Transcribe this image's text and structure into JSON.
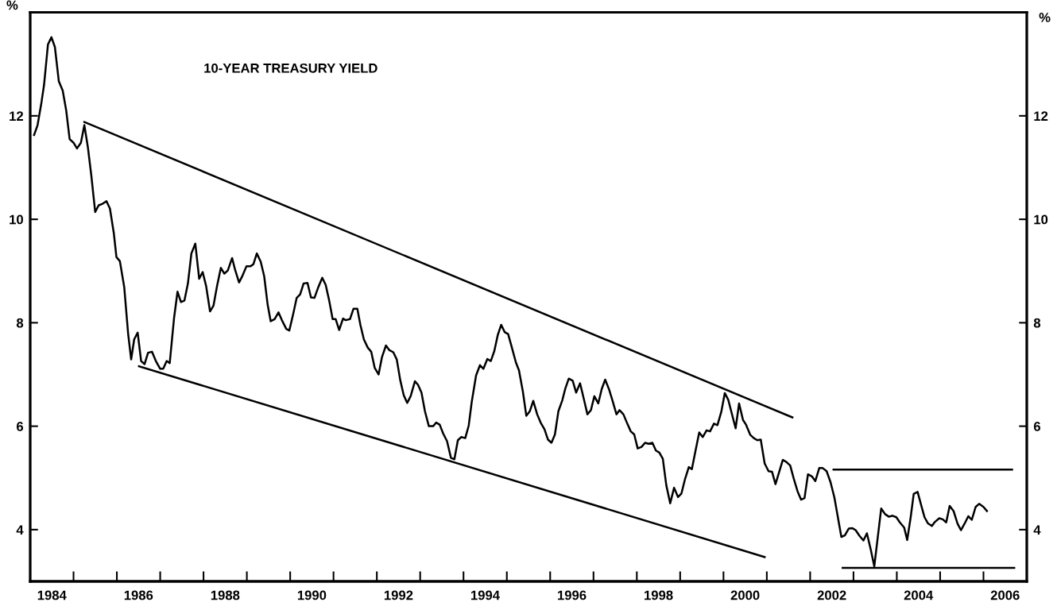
{
  "chart_data": {
    "type": "line",
    "title": "10-YEAR TREASURY YIELD",
    "ylabel": "%",
    "y2label": "%",
    "xlim": [
      1984,
      2007
    ],
    "ylim": [
      3,
      14
    ],
    "yticks": [
      4,
      6,
      8,
      10,
      12
    ],
    "y2lim": [
      3,
      14
    ],
    "y2ticks": [
      4,
      6,
      8,
      10,
      12
    ],
    "xticks": [
      {
        "value": 1984.5,
        "label": "1984"
      },
      {
        "value": 1986.5,
        "label": "1986"
      },
      {
        "value": 1988.5,
        "label": "1988"
      },
      {
        "value": 1990.5,
        "label": "1990"
      },
      {
        "value": 1992.5,
        "label": "1992"
      },
      {
        "value": 1994.5,
        "label": "1994"
      },
      {
        "value": 1996.5,
        "label": "1996"
      },
      {
        "value": 1998.5,
        "label": "1998"
      },
      {
        "value": 2000.5,
        "label": "2000"
      },
      {
        "value": 2002.5,
        "label": "2002"
      },
      {
        "value": 2004.5,
        "label": "2004"
      },
      {
        "value": 2006.5,
        "label": "2006"
      },
      {
        "value": 1985,
        "label": null
      },
      {
        "value": 1986,
        "label": null
      },
      {
        "value": 1987,
        "label": null
      },
      {
        "value": 1988,
        "label": null
      },
      {
        "value": 1989,
        "label": null
      },
      {
        "value": 1990,
        "label": null
      },
      {
        "value": 1991,
        "label": null
      },
      {
        "value": 1992,
        "label": null
      },
      {
        "value": 1993,
        "label": null
      },
      {
        "value": 1994,
        "label": null
      },
      {
        "value": 1995,
        "label": null
      },
      {
        "value": 1996,
        "label": null
      },
      {
        "value": 1997,
        "label": null
      },
      {
        "value": 1998,
        "label": null
      },
      {
        "value": 1999,
        "label": null
      },
      {
        "value": 2000,
        "label": null
      },
      {
        "value": 2001,
        "label": null
      },
      {
        "value": 2002,
        "label": null
      },
      {
        "value": 2003,
        "label": null
      },
      {
        "value": 2004,
        "label": null
      },
      {
        "value": 2005,
        "label": null
      },
      {
        "value": 2006,
        "label": null
      }
    ],
    "grid": false,
    "marker": "none",
    "line_style": "solid",
    "series": [
      {
        "color": "#000000",
        "x": [
          1984.09,
          1984.17,
          1984.26,
          1984.32,
          1984.41,
          1984.49,
          1984.57,
          1984.66,
          1984.75,
          1984.83,
          1984.91,
          1985.0,
          1985.08,
          1985.17,
          1985.25,
          1985.33,
          1985.41,
          1985.5,
          1985.58,
          1985.67,
          1985.76,
          1985.84,
          1985.93,
          1985.99,
          1986.07,
          1986.17,
          1986.26,
          1986.33,
          1986.4,
          1986.48,
          1986.56,
          1986.64,
          1986.72,
          1986.81,
          1986.9,
          1987.0,
          1987.07,
          1987.15,
          1987.22,
          1987.32,
          1987.4,
          1987.48,
          1987.56,
          1987.64,
          1987.72,
          1987.81,
          1987.9,
          1987.98,
          1988.06,
          1988.15,
          1988.23,
          1988.31,
          1988.4,
          1988.48,
          1988.56,
          1988.66,
          1988.73,
          1988.82,
          1988.9,
          1988.99,
          1989.08,
          1989.15,
          1989.23,
          1989.32,
          1989.4,
          1989.48,
          1989.55,
          1989.64,
          1989.73,
          1989.82,
          1989.91,
          1989.98,
          1990.07,
          1990.15,
          1990.23,
          1990.31,
          1990.4,
          1990.48,
          1990.56,
          1990.65,
          1990.74,
          1990.82,
          1990.9,
          1990.98,
          1991.05,
          1991.13,
          1991.22,
          1991.28,
          1991.38,
          1991.46,
          1991.55,
          1991.62,
          1991.7,
          1991.79,
          1991.87,
          1991.95,
          1992.04,
          1992.12,
          1992.21,
          1992.29,
          1992.38,
          1992.46,
          1992.54,
          1992.62,
          1992.7,
          1992.78,
          1992.88,
          1992.95,
          1993.03,
          1993.11,
          1993.2,
          1993.3,
          1993.37,
          1993.45,
          1993.53,
          1993.62,
          1993.71,
          1993.79,
          1993.87,
          1993.95,
          1994.04,
          1994.12,
          1994.19,
          1994.29,
          1994.38,
          1994.46,
          1994.55,
          1994.63,
          1994.71,
          1994.79,
          1994.87,
          1994.95,
          1995.03,
          1995.11,
          1995.21,
          1995.28,
          1995.37,
          1995.45,
          1995.53,
          1995.61,
          1995.7,
          1995.78,
          1995.87,
          1995.95,
          1996.03,
          1996.11,
          1996.19,
          1996.28,
          1996.35,
          1996.43,
          1996.52,
          1996.6,
          1996.69,
          1996.77,
          1996.86,
          1996.94,
          1997.02,
          1997.11,
          1997.19,
          1997.27,
          1997.36,
          1997.44,
          1997.53,
          1997.6,
          1997.69,
          1997.78,
          1997.86,
          1997.94,
          1998.02,
          1998.11,
          1998.19,
          1998.27,
          1998.36,
          1998.44,
          1998.52,
          1998.6,
          1998.68,
          1998.77,
          1998.86,
          1998.95,
          1999.03,
          1999.11,
          1999.2,
          1999.27,
          1999.36,
          1999.44,
          1999.52,
          1999.61,
          1999.69,
          1999.78,
          1999.86,
          1999.95,
          2000.03,
          2000.11,
          2000.28,
          2000.36,
          2000.45,
          2000.52,
          2000.62,
          2000.7,
          2000.78,
          2000.86,
          2000.95,
          2001.04,
          2001.12,
          2001.2,
          2001.37,
          2001.45,
          2001.54,
          2001.62,
          2001.71,
          2001.79,
          2001.87,
          2001.95,
          2002.04,
          2002.12,
          2002.21,
          2002.29,
          2002.38,
          2002.47,
          2002.56,
          2002.64,
          2002.72,
          2002.8,
          2002.89,
          2002.97,
          2003.05,
          2003.14,
          2003.23,
          2003.31,
          2003.4,
          2003.48,
          2003.56,
          2003.64,
          2003.73,
          2003.82,
          2003.9,
          2003.99,
          2004.07,
          2004.17,
          2004.24,
          2004.32,
          2004.39,
          2004.48,
          2004.57,
          2004.64,
          2004.72,
          2004.81,
          2004.88,
          2004.98,
          2005.06,
          2005.14,
          2005.22,
          2005.31,
          2005.4,
          2005.48,
          2005.56,
          2005.65,
          2005.73,
          2005.82,
          2005.9,
          2006.0,
          2006.08
        ],
        "values": [
          11.63,
          11.82,
          12.26,
          12.6,
          13.38,
          13.52,
          13.33,
          12.67,
          12.49,
          12.11,
          11.55,
          11.48,
          11.37,
          11.48,
          11.82,
          11.4,
          10.85,
          10.14,
          10.27,
          10.3,
          10.35,
          10.21,
          9.73,
          9.27,
          9.19,
          8.69,
          7.79,
          7.29,
          7.68,
          7.81,
          7.26,
          7.2,
          7.42,
          7.44,
          7.26,
          7.11,
          7.11,
          7.26,
          7.22,
          8.09,
          8.6,
          8.4,
          8.43,
          8.76,
          9.34,
          9.53,
          8.85,
          8.98,
          8.71,
          8.22,
          8.33,
          8.7,
          9.06,
          8.95,
          9.01,
          9.25,
          9.02,
          8.78,
          8.91,
          9.09,
          9.09,
          9.13,
          9.34,
          9.18,
          8.9,
          8.35,
          8.03,
          8.07,
          8.2,
          8.03,
          7.88,
          7.85,
          8.17,
          8.48,
          8.55,
          8.76,
          8.77,
          8.49,
          8.48,
          8.69,
          8.87,
          8.73,
          8.43,
          8.07,
          8.07,
          7.86,
          8.08,
          8.05,
          8.07,
          8.27,
          8.27,
          7.96,
          7.68,
          7.52,
          7.44,
          7.13,
          7.0,
          7.34,
          7.56,
          7.47,
          7.43,
          7.29,
          6.89,
          6.6,
          6.45,
          6.58,
          6.87,
          6.8,
          6.65,
          6.29,
          6.0,
          6.0,
          6.07,
          6.03,
          5.86,
          5.71,
          5.39,
          5.36,
          5.73,
          5.79,
          5.77,
          6.01,
          6.47,
          6.98,
          7.18,
          7.11,
          7.3,
          7.26,
          7.45,
          7.76,
          7.96,
          7.82,
          7.78,
          7.54,
          7.23,
          7.08,
          6.67,
          6.2,
          6.29,
          6.49,
          6.23,
          6.07,
          5.94,
          5.74,
          5.68,
          5.84,
          6.29,
          6.5,
          6.73,
          6.92,
          6.88,
          6.65,
          6.83,
          6.55,
          6.23,
          6.31,
          6.58,
          6.44,
          6.72,
          6.9,
          6.71,
          6.49,
          6.23,
          6.31,
          6.23,
          6.05,
          5.9,
          5.84,
          5.57,
          5.6,
          5.68,
          5.66,
          5.68,
          5.53,
          5.49,
          5.37,
          4.86,
          4.51,
          4.81,
          4.63,
          4.7,
          4.97,
          5.21,
          5.17,
          5.55,
          5.88,
          5.79,
          5.92,
          5.9,
          6.05,
          6.02,
          6.28,
          6.64,
          6.51,
          5.96,
          6.44,
          6.12,
          6.03,
          5.83,
          5.77,
          5.73,
          5.74,
          5.28,
          5.13,
          5.12,
          4.88,
          5.35,
          5.31,
          5.24,
          4.99,
          4.74,
          4.58,
          4.61,
          5.07,
          5.03,
          4.94,
          5.19,
          5.19,
          5.13,
          4.92,
          4.62,
          4.24,
          3.86,
          3.89,
          4.02,
          4.03,
          3.99,
          3.88,
          3.79,
          3.93,
          3.61,
          3.29,
          3.85,
          4.41,
          4.3,
          4.25,
          4.27,
          4.24,
          4.14,
          4.04,
          3.8,
          4.24,
          4.69,
          4.73,
          4.45,
          4.24,
          4.12,
          4.07,
          4.15,
          4.22,
          4.2,
          4.14,
          4.46,
          4.36,
          4.12,
          3.99,
          4.11,
          4.26,
          4.19,
          4.44,
          4.5,
          4.44,
          4.36
        ]
      },
      {
        "color": "#000000",
        "x": [
          1985.25,
          2001.59
        ],
        "values": [
          11.88,
          6.17
        ]
      },
      {
        "color": "#000000",
        "x": [
          1986.51,
          2000.95
        ],
        "values": [
          7.16,
          3.47
        ]
      },
      {
        "color": "#000000",
        "x": [
          2002.54,
          2006.66
        ],
        "values": [
          5.16,
          5.16
        ]
      },
      {
        "color": "#000000",
        "x": [
          2002.75,
          2006.71
        ],
        "values": [
          3.26,
          3.26
        ]
      }
    ]
  }
}
